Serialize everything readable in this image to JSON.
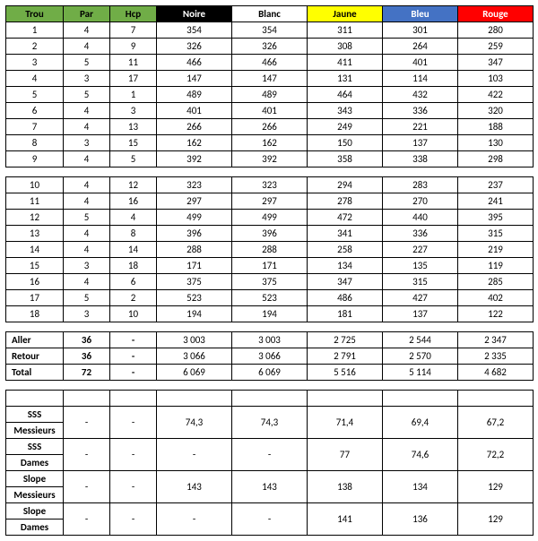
{
  "headers": {
    "cols": [
      "Trou",
      "Par",
      "Hcp",
      "Noire",
      "Blanc",
      "Jaune",
      "Bleu",
      "Rouge"
    ],
    "bg": [
      "#70ad47",
      "#70ad47",
      "#70ad47",
      "#000000",
      "#ffffff",
      "#ffff00",
      "#4472c4",
      "#ff0000"
    ],
    "fg": [
      "#000000",
      "#000000",
      "#000000",
      "#ffffff",
      "#000000",
      "#000000",
      "#ffffff",
      "#ffffff"
    ]
  },
  "colWidths": [
    "64px",
    "52px",
    "52px",
    "84px",
    "84px",
    "84px",
    "84px",
    "84px"
  ],
  "front9": [
    [
      "1",
      "4",
      "7",
      "354",
      "354",
      "311",
      "301",
      "280"
    ],
    [
      "2",
      "4",
      "9",
      "326",
      "326",
      "308",
      "264",
      "259"
    ],
    [
      "3",
      "5",
      "11",
      "466",
      "466",
      "411",
      "401",
      "347"
    ],
    [
      "4",
      "3",
      "17",
      "147",
      "147",
      "131",
      "114",
      "103"
    ],
    [
      "5",
      "5",
      "1",
      "489",
      "489",
      "464",
      "432",
      "422"
    ],
    [
      "6",
      "4",
      "3",
      "401",
      "401",
      "343",
      "336",
      "320"
    ],
    [
      "7",
      "4",
      "13",
      "266",
      "266",
      "249",
      "221",
      "188"
    ],
    [
      "8",
      "3",
      "15",
      "162",
      "162",
      "150",
      "137",
      "130"
    ],
    [
      "9",
      "4",
      "5",
      "392",
      "392",
      "358",
      "338",
      "298"
    ]
  ],
  "back9": [
    [
      "10",
      "4",
      "12",
      "323",
      "323",
      "294",
      "283",
      "237"
    ],
    [
      "11",
      "4",
      "16",
      "297",
      "297",
      "278",
      "270",
      "241"
    ],
    [
      "12",
      "5",
      "4",
      "499",
      "499",
      "472",
      "440",
      "395"
    ],
    [
      "13",
      "4",
      "8",
      "396",
      "396",
      "341",
      "336",
      "315"
    ],
    [
      "14",
      "4",
      "14",
      "288",
      "288",
      "258",
      "227",
      "219"
    ],
    [
      "15",
      "3",
      "18",
      "171",
      "171",
      "134",
      "135",
      "119"
    ],
    [
      "16",
      "4",
      "6",
      "375",
      "375",
      "347",
      "315",
      "285"
    ],
    [
      "17",
      "5",
      "2",
      "523",
      "523",
      "486",
      "427",
      "402"
    ],
    [
      "18",
      "3",
      "10",
      "194",
      "194",
      "181",
      "137",
      "122"
    ]
  ],
  "totals": [
    [
      "Aller",
      "36",
      "-",
      "3 003",
      "3 003",
      "2 725",
      "2 544",
      "2 347"
    ],
    [
      "Retour",
      "36",
      "-",
      "3 066",
      "3 066",
      "2 791",
      "2 570",
      "2 335"
    ],
    [
      "Total",
      "72",
      "-",
      "6 069",
      "6 069",
      "5 516",
      "5 114",
      "4 682"
    ]
  ],
  "ratings": [
    {
      "label1": "SSS",
      "label2": "Messieurs",
      "par": "-",
      "hcp": "-",
      "vals": [
        "74,3",
        "74,3",
        "71,4",
        "69,4",
        "67,2"
      ]
    },
    {
      "label1": "SSS",
      "label2": "Dames",
      "par": "-",
      "hcp": "-",
      "vals": [
        "-",
        "-",
        "77",
        "74,6",
        "72,2"
      ]
    },
    {
      "label1": "Slope",
      "label2": "Messieurs",
      "par": "-",
      "hcp": "-",
      "vals": [
        "143",
        "143",
        "138",
        "134",
        "129"
      ]
    },
    {
      "label1": "Slope",
      "label2": "Dames",
      "par": "-",
      "hcp": "-",
      "vals": [
        "-",
        "-",
        "141",
        "136",
        "129"
      ]
    }
  ]
}
